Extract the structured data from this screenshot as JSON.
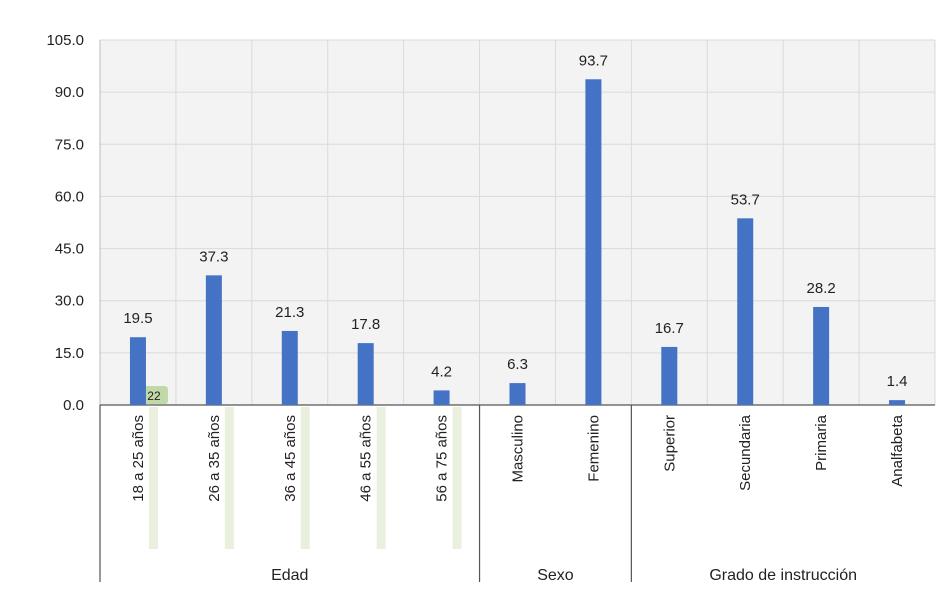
{
  "chart_data": {
    "type": "bar",
    "title": "",
    "xlabel": "",
    "ylabel": "",
    "ylim": [
      0,
      105
    ],
    "yticks": [
      "0.0",
      "15.0",
      "30.0",
      "45.0",
      "60.0",
      "75.0",
      "90.0",
      "105.0"
    ],
    "grid": true,
    "bar_color": "#4472c4",
    "categories": [
      "18 a 25 años",
      "26 a 35 años",
      "36 a 45 años",
      "46 a 55 años",
      "56 a 75 años",
      "Masculino",
      "Femenino",
      "Superior",
      "Secundaria",
      "Primaria",
      "Analfabeta"
    ],
    "values": [
      19.5,
      37.3,
      21.3,
      17.8,
      4.2,
      6.3,
      93.7,
      16.7,
      53.7,
      28.2,
      1.4
    ],
    "value_labels": [
      "19.5",
      "37.3",
      "21.3",
      "17.8",
      "4.2",
      "6.3",
      "93.7",
      "16.7",
      "53.7",
      "28.2",
      "1.4"
    ],
    "groups": [
      {
        "label": "Edad",
        "count": 5
      },
      {
        "label": "Sexo",
        "count": 2
      },
      {
        "label": "Grado de instrucción",
        "count": 4
      }
    ],
    "annotation": "22"
  }
}
